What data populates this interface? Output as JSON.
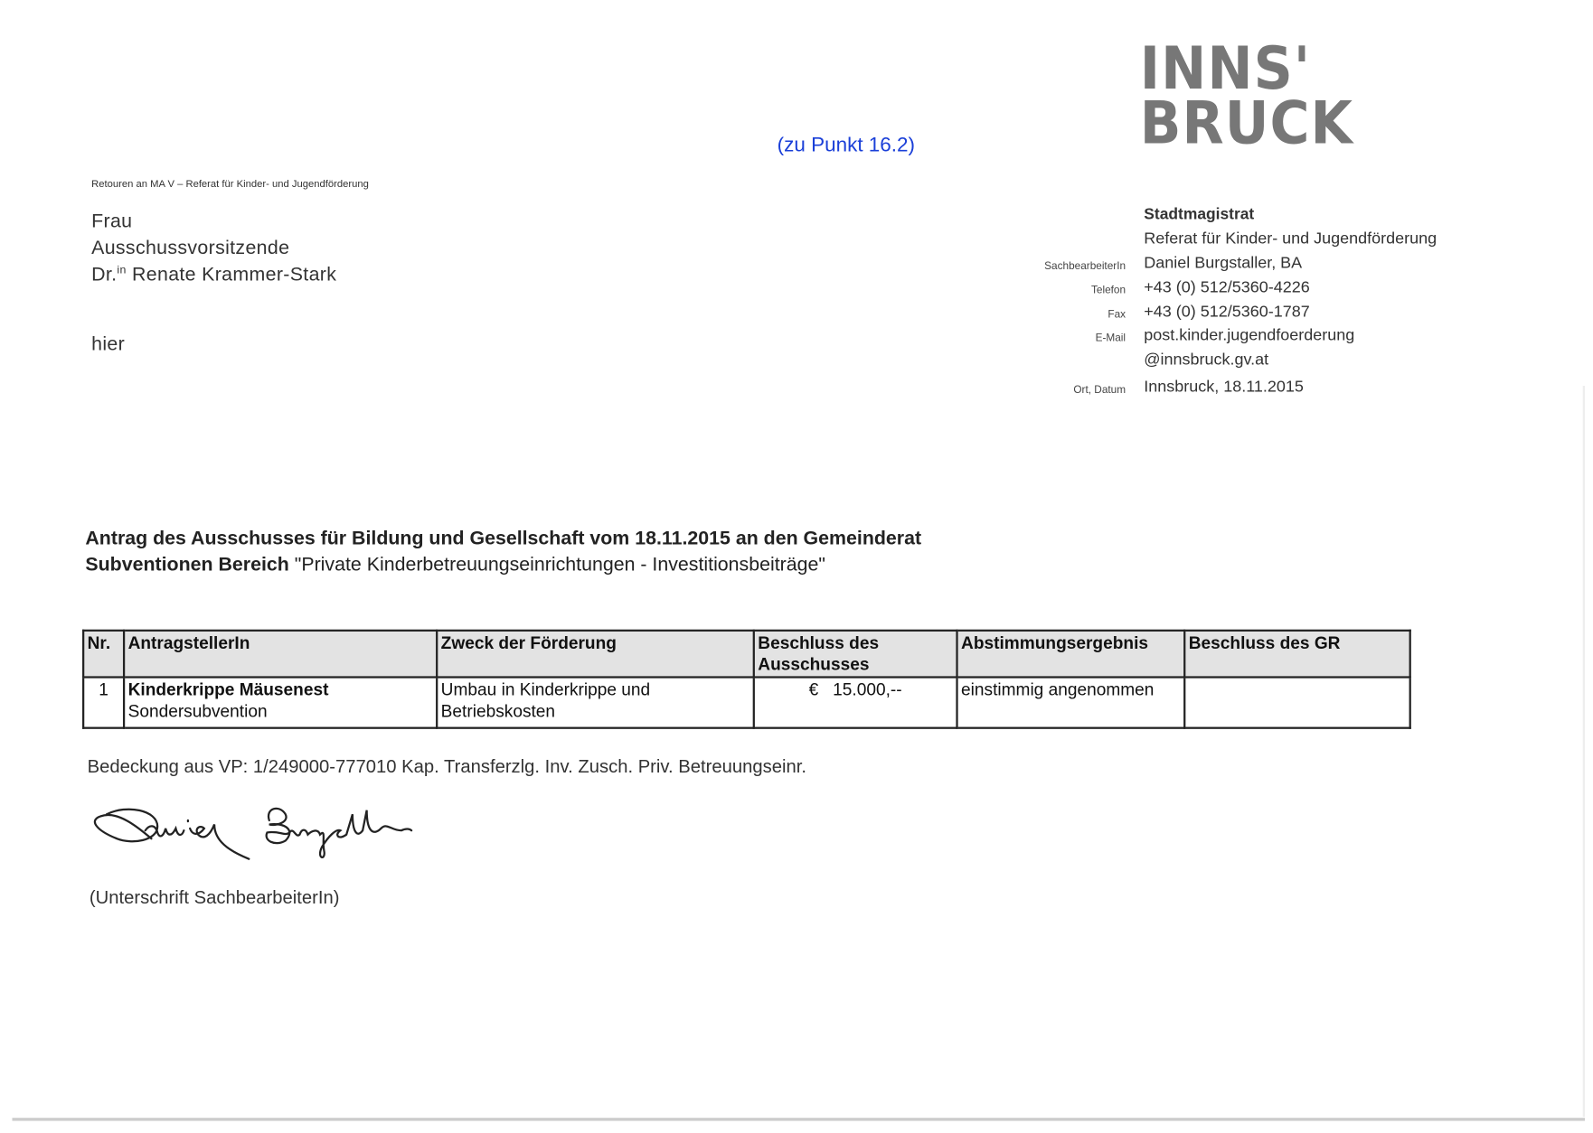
{
  "logo": {
    "line1": "INNS'",
    "line2": "BRUCK"
  },
  "reference": "(zu Punkt 16.2)",
  "return_address": "Retouren an MA V – Referat für Kinder- und Jugendförderung",
  "recipient": {
    "line1": "Frau",
    "line2": "Ausschussvorsitzende",
    "line3_prefix": "Dr.",
    "line3_sup": "in",
    "line3_name": " Renate Krammer-Stark",
    "line4": "hier"
  },
  "sender": {
    "org": "Stadtmagistrat",
    "dept": "Referat für Kinder- und Jugendförderung",
    "rows": [
      {
        "label": "SachbearbeiterIn",
        "value": "Daniel Burgstaller, BA"
      },
      {
        "label": "Telefon",
        "value": "+43 (0) 512/5360-4226"
      },
      {
        "label": "Fax",
        "value": "+43 (0) 512/5360-1787"
      },
      {
        "label": "E-Mail",
        "value": "post.kinder.jugendfoerderung"
      },
      {
        "label": "",
        "value": "@innsbruck.gv.at"
      },
      {
        "label": "Ort, Datum",
        "value": "Innsbruck, 18.11.2015"
      }
    ]
  },
  "title": {
    "line1": "Antrag des Ausschusses für Bildung und Gesellschaft vom 18.11.2015 an den Gemeinderat",
    "line2_bold": "Subventionen Bereich",
    "line2_rest": " \"Private Kinderbetreuungseinrichtungen - Investitionsbeiträge\""
  },
  "table": {
    "headers": [
      "Nr.",
      "AntragstellerIn",
      "Zweck der Förderung",
      "Beschluss des Ausschusses",
      "Abstimmungsergebnis",
      "Beschluss des GR"
    ],
    "rows": [
      {
        "nr": "1",
        "applicant": "Kinderkrippe Mäusenest",
        "applicant_sub": "Sondersubvention",
        "purpose": "Umbau in Kinderkrippe und Betriebskosten",
        "amount": "€   15.000,--",
        "vote": "einstimmig angenommen",
        "gr": ""
      }
    ]
  },
  "coverage": "Bedeckung aus VP: 1/249000-777010 Kap. Transferzlg. Inv. Zusch. Priv. Betreuungseinr.",
  "signature": {
    "name": "Daniel Burgstaller",
    "caption": "(Unterschrift SachbearbeiterIn)"
  }
}
